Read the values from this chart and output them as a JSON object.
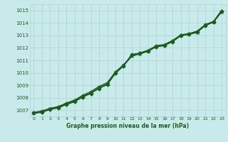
{
  "title": "Graphe pression niveau de la mer (hPa)",
  "bg_color": "#c8eaea",
  "grid_color": "#b0d8d8",
  "line_color": "#1a5c1a",
  "xlim": [
    -0.5,
    23.5
  ],
  "ylim": [
    1006.5,
    1015.5
  ],
  "yticks": [
    1007,
    1008,
    1009,
    1010,
    1011,
    1012,
    1013,
    1014,
    1015
  ],
  "xticks": [
    0,
    1,
    2,
    3,
    4,
    5,
    6,
    7,
    8,
    9,
    10,
    11,
    12,
    13,
    14,
    15,
    16,
    17,
    18,
    19,
    20,
    21,
    22,
    23
  ],
  "x": [
    0,
    1,
    2,
    3,
    4,
    5,
    6,
    7,
    8,
    9,
    10,
    11,
    12,
    13,
    14,
    15,
    16,
    17,
    18,
    19,
    20,
    21,
    22,
    23
  ],
  "line1": [
    1006.78,
    1006.85,
    1007.05,
    1007.2,
    1007.45,
    1007.68,
    1008.05,
    1008.35,
    1008.75,
    1009.05,
    1009.95,
    1010.55,
    1011.45,
    1011.55,
    1011.75,
    1012.08,
    1012.18,
    1012.5,
    1012.98,
    1013.08,
    1013.28,
    1013.78,
    1014.08,
    1014.95
  ],
  "line2": [
    1006.82,
    1006.95,
    1007.15,
    1007.3,
    1007.58,
    1007.82,
    1008.2,
    1008.5,
    1008.92,
    1009.22,
    1010.08,
    1010.65,
    1011.38,
    1011.6,
    1011.82,
    1012.18,
    1012.28,
    1012.6,
    1013.05,
    1013.15,
    1013.35,
    1013.88,
    1014.12,
    1015.0
  ],
  "line3": [
    1006.78,
    1006.88,
    1007.12,
    1007.25,
    1007.52,
    1007.75,
    1008.12,
    1008.42,
    1008.82,
    1009.12,
    1010.02,
    1010.58,
    1011.32,
    1011.52,
    1011.72,
    1012.12,
    1012.22,
    1012.52,
    1012.98,
    1013.1,
    1013.22,
    1013.82,
    1014.05,
    1014.88
  ],
  "line4": [
    1006.75,
    1006.82,
    1007.08,
    1007.18,
    1007.48,
    1007.72,
    1008.08,
    1008.38,
    1008.78,
    1009.08,
    1009.98,
    1010.58,
    1011.48,
    1011.58,
    1011.78,
    1012.1,
    1012.2,
    1012.55,
    1013.02,
    1013.12,
    1013.32,
    1013.82,
    1014.1,
    1015.02
  ]
}
